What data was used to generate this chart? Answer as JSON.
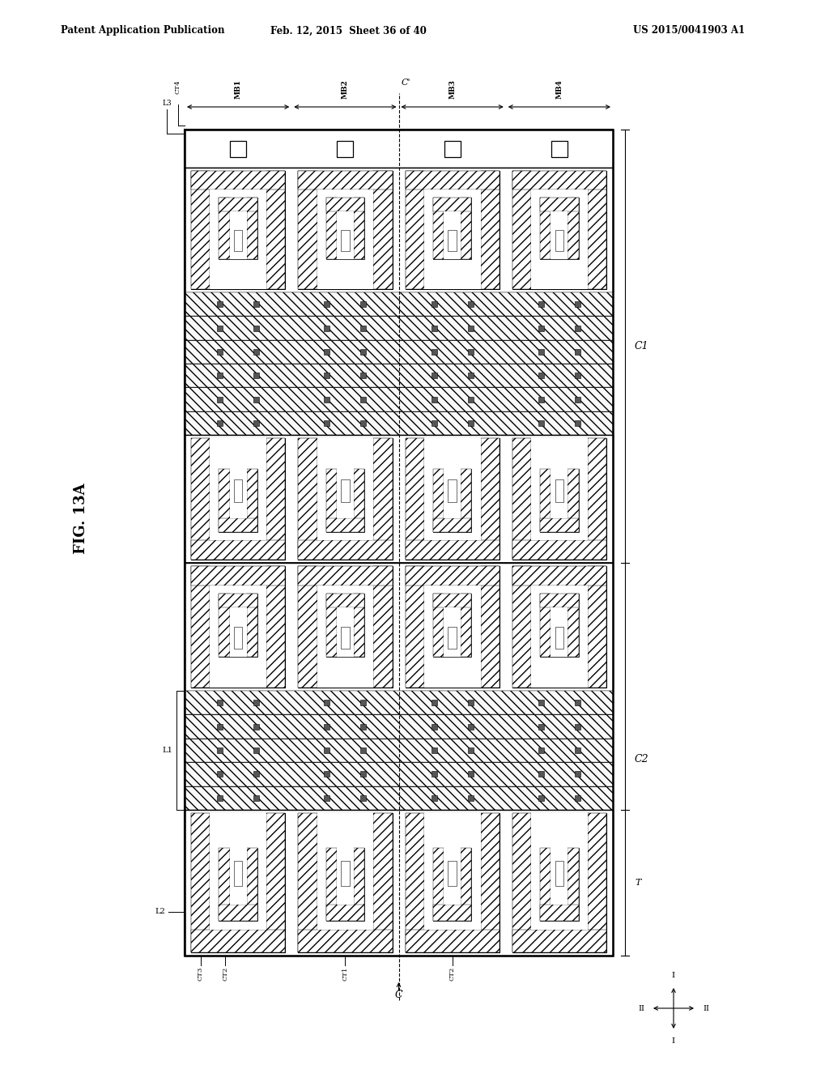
{
  "header_left": "Patent Application Publication",
  "header_mid": "Feb. 12, 2015  Sheet 36 of 40",
  "header_right": "US 2015/0041903 A1",
  "fig_label": "FIG. 13A",
  "bg_color": "#ffffff",
  "mx0": 228,
  "mx1": 757,
  "my0": 140,
  "my1": 1160,
  "mb_labels": [
    "MB1",
    "MB2",
    "MB3",
    "MB4"
  ],
  "C1_label": "C1",
  "C2_label": "C2",
  "C_label": "C",
  "C_prime": "C'",
  "L1_label": "L1",
  "L2_label": "L2",
  "L3_label": "L3",
  "CT4_label": "CT4",
  "T_label": "T",
  "ct_bottom_labels": [
    "CT3",
    "CT2",
    "CT1",
    "CT2"
  ]
}
